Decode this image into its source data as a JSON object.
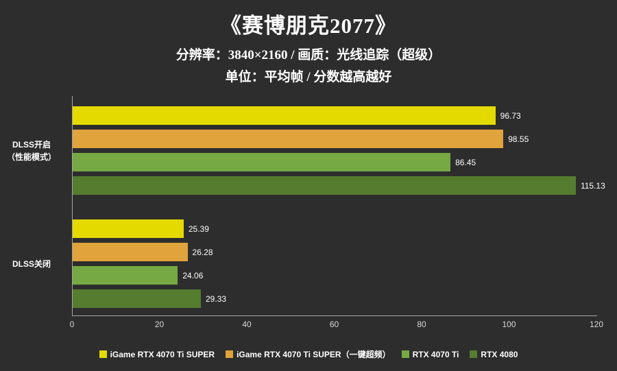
{
  "header": {
    "title": "《赛博朋克2077》",
    "subtitle1": "分辨率：3840×2160 / 画质：光线追踪（超级）",
    "subtitle2": "单位：平均帧 / 分数越高越好"
  },
  "colors": {
    "background": "#2d2d2d",
    "axis_line": "#a6a6a6",
    "tick_text": "#d9d9d9",
    "value_text": "#ffffff"
  },
  "chart_data": {
    "type": "bar",
    "orientation": "horizontal",
    "title": "《赛博朋克2077》",
    "subtitle": "分辨率：3840×2160 / 画质：光线追踪（超级） 单位：平均帧 / 分数越高越好",
    "categories": [
      "DLSS开启\n（性能模式）",
      "DLSS关闭"
    ],
    "series": [
      {
        "name": "iGame RTX 4070 Ti SUPER",
        "color": "#e4da00",
        "values": [
          96.73,
          25.39
        ]
      },
      {
        "name": "iGame RTX 4070 Ti SUPER（一键超频）",
        "color": "#e1a33b",
        "values": [
          98.55,
          26.28
        ]
      },
      {
        "name": "RTX 4070 Ti",
        "color": "#76a943",
        "values": [
          86.45,
          24.06
        ]
      },
      {
        "name": "RTX 4080",
        "color": "#567c30",
        "values": [
          115.13,
          29.33
        ]
      }
    ],
    "xlim": [
      0,
      120
    ],
    "xticks": [
      0,
      20,
      40,
      60,
      80,
      100,
      120
    ],
    "grid": false,
    "legend_position": "bottom",
    "value_labels": true
  }
}
